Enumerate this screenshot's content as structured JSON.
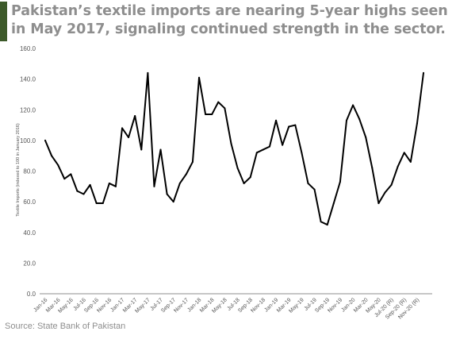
{
  "title": {
    "line1": "Pakistan’s textile imports are nearing 5-year highs seen",
    "line2": "in May 2017, signaling continued strength in the sector."
  },
  "source": "Source: State Bank of Pakistan",
  "colors": {
    "accent": "#3d5a2a",
    "title": "#8e8e8e",
    "line": "#000000",
    "axis": "#8c8c8c",
    "tick_text": "#555555"
  },
  "chart_data": {
    "type": "line",
    "title": "",
    "xlabel": "",
    "ylabel": "Textile Imports (indexed to 100 in January 2016)",
    "ylim": [
      0,
      160
    ],
    "yticks": [
      "0.0",
      "20.0",
      "40.0",
      "60.0",
      "80.0",
      "100.0",
      "120.0",
      "140.0",
      "160.0"
    ],
    "grid": false,
    "legend": "none",
    "x_tick_labels": [
      "Jan-16",
      "Mar-16",
      "May-16",
      "Jul-16",
      "Sep-16",
      "Nov-16",
      "Jan-17",
      "Mar-17",
      "May-17",
      "Jul-17",
      "Sep-17",
      "Nov-17",
      "Jan-18",
      "Mar-18",
      "May-18",
      "Jul-18",
      "Sep-18",
      "Nov-18",
      "Jan-19",
      "Mar-19",
      "May-19",
      "Jul-19",
      "Sep-19",
      "Nov-19",
      "Jan-20",
      "Mar-20",
      "May-20",
      "Jul-20 (R)",
      "Sep-20 (R)",
      "Nov-20 (R)"
    ],
    "series": [
      {
        "values": [
          100,
          90,
          84,
          75,
          78,
          67,
          65,
          71,
          59,
          59,
          72,
          70,
          108,
          102,
          116,
          94,
          144,
          70,
          94,
          65,
          60,
          72,
          78,
          86,
          141,
          117,
          117,
          125,
          121,
          98,
          82,
          72,
          76,
          92,
          94,
          96,
          113,
          97,
          109,
          110,
          92,
          72,
          68,
          47,
          45,
          59,
          73,
          113,
          123,
          114,
          102,
          82,
          59,
          66,
          71,
          83,
          92,
          86,
          111,
          144
        ]
      }
    ]
  }
}
